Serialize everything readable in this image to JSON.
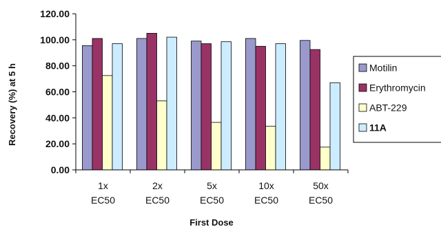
{
  "chart_data": {
    "type": "bar",
    "title": "",
    "xlabel": "First Dose",
    "ylabel": "Recovery (%) at 5 h",
    "ylim": [
      0,
      120
    ],
    "yticks": [
      "0.00",
      "20.00",
      "40.00",
      "60.00",
      "80.00",
      "100.00",
      "120.00"
    ],
    "grid": false,
    "legend_position": "right",
    "categories": [
      [
        "1x",
        "EC50"
      ],
      [
        "2x",
        "EC50"
      ],
      [
        "5x",
        "EC50"
      ],
      [
        "10x",
        "EC50"
      ],
      [
        "50x",
        "EC50"
      ]
    ],
    "series": [
      {
        "name": "Motilin",
        "color": "#9999cc",
        "bold": false,
        "values": [
          95.5,
          101,
          99,
          101,
          99.5
        ]
      },
      {
        "name": "Erythromycin",
        "color": "#993366",
        "bold": false,
        "values": [
          101,
          105,
          97,
          95,
          92.5
        ]
      },
      {
        "name": "ABT-229",
        "color": "#ffffcc",
        "bold": false,
        "values": [
          72.5,
          53,
          36.5,
          33.5,
          17.5
        ]
      },
      {
        "name": "11A",
        "color": "#ccecff",
        "bold": true,
        "values": [
          97,
          102,
          98.5,
          97,
          67
        ]
      }
    ]
  }
}
